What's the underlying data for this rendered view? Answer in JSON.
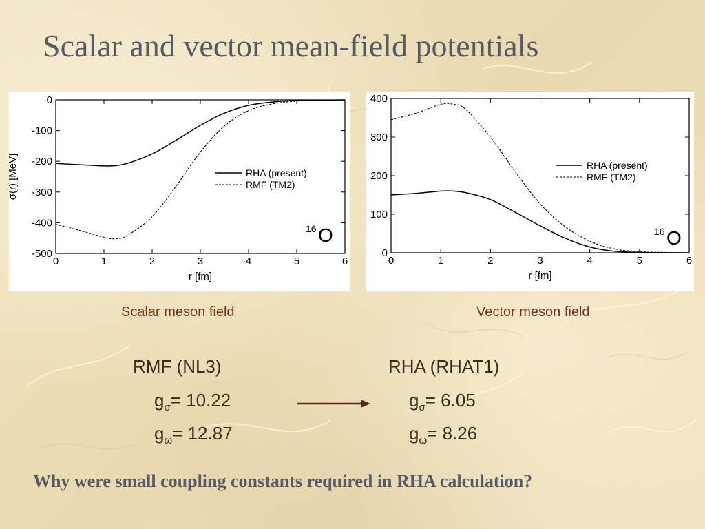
{
  "slide": {
    "title": "Scalar and vector mean-field potentials",
    "question": "Why were small coupling constants required in RHA calculation?"
  },
  "captions": {
    "left": "Scalar meson field",
    "right": "Vector meson field"
  },
  "couplings": {
    "left": {
      "heading": "RMF (NL3)",
      "g_sigma_value": "= 10.22",
      "g_omega_value": "= 12.87"
    },
    "right": {
      "heading": "RHA (RHAT1)",
      "g_sigma_value": "= 6.05",
      "g_omega_value": "= 8.26"
    },
    "g_symbol": "g",
    "sigma_symbol": "σ",
    "omega_symbol": "ω"
  },
  "colors": {
    "title": "#555a66",
    "caption": "#7a3412",
    "arrow": "#5a2a10"
  },
  "chart_data": [
    {
      "type": "line",
      "xlabel": "r [fm]",
      "ylabel": "σ(r) [MeV]",
      "xlim": [
        0,
        6
      ],
      "ylim": [
        -500,
        0
      ],
      "xticks": [
        0,
        1,
        2,
        3,
        4,
        5,
        6
      ],
      "yticks": [
        0,
        -100,
        -200,
        -300,
        -400,
        -500
      ],
      "annotation": {
        "mass": "16",
        "element": "O"
      },
      "legend_position": "center-right",
      "x": [
        0,
        0.5,
        1.0,
        1.25,
        1.5,
        2.0,
        2.5,
        3.0,
        3.5,
        4.0,
        4.5,
        5.0,
        5.5,
        6.0
      ],
      "series": [
        {
          "name": "RHA (present)",
          "style": "solid",
          "values": [
            -207,
            -211,
            -215,
            -214,
            -206,
            -176,
            -131,
            -83,
            -43,
            -18,
            -7,
            -2,
            -1,
            0
          ]
        },
        {
          "name": "RMF (TM2)",
          "style": "dashed",
          "values": [
            -405,
            -425,
            -447,
            -452,
            -440,
            -380,
            -280,
            -170,
            -85,
            -35,
            -13,
            -4,
            -1,
            0
          ]
        }
      ]
    },
    {
      "type": "line",
      "xlabel": "r [fm]",
      "ylabel": "",
      "xlim": [
        0,
        6
      ],
      "ylim": [
        0,
        400
      ],
      "xticks": [
        0,
        1,
        2,
        3,
        4,
        5,
        6
      ],
      "yticks": [
        0,
        100,
        200,
        300,
        400
      ],
      "annotation": {
        "mass": "16",
        "element": "O"
      },
      "legend_position": "center-right",
      "x": [
        0,
        0.5,
        1.0,
        1.25,
        1.5,
        2.0,
        2.5,
        3.0,
        3.5,
        4.0,
        4.5,
        5.0,
        5.5,
        6.0
      ],
      "series": [
        {
          "name": "RHA (present)",
          "style": "solid",
          "values": [
            150,
            154,
            160,
            160,
            156,
            138,
            105,
            70,
            38,
            15,
            4,
            1,
            0,
            0
          ]
        },
        {
          "name": "RMF (TM2)",
          "style": "dashed",
          "values": [
            345,
            362,
            385,
            385,
            372,
            300,
            210,
            127,
            68,
            30,
            10,
            3,
            1,
            0
          ]
        }
      ]
    }
  ]
}
